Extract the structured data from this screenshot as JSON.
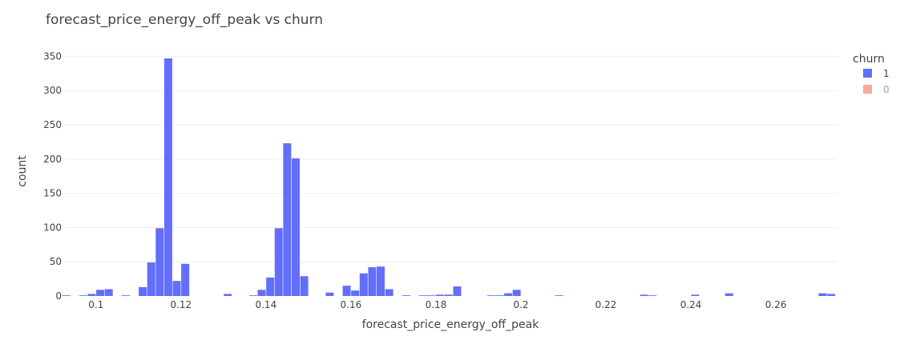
{
  "chart_data": {
    "type": "bar",
    "title": "forecast_price_energy_off_peak vs churn",
    "xlabel": "forecast_price_energy_off_peak",
    "ylabel": "count",
    "xlim": [
      0.0925,
      0.2745
    ],
    "ylim": [
      0,
      368
    ],
    "x_ticks": [
      0.1,
      0.12,
      0.14,
      0.16,
      0.18,
      0.2,
      0.22,
      0.24,
      0.26
    ],
    "x_tick_labels": [
      "0.1",
      "0.12",
      "0.14",
      "0.16",
      "0.18",
      "0.2",
      "0.22",
      "0.24",
      "0.26"
    ],
    "y_ticks": [
      0,
      50,
      100,
      150,
      200,
      250,
      300,
      350
    ],
    "y_tick_labels": [
      "0",
      "50",
      "100",
      "150",
      "200",
      "250",
      "300",
      "350"
    ],
    "bin_width": 0.002,
    "grid": true,
    "legend": {
      "title": "churn",
      "placement": "top-right",
      "entries": [
        {
          "label": "1",
          "color": "#636efa",
          "visible": true
        },
        {
          "label": "0",
          "color": "#ef553b",
          "visible": false
        }
      ]
    },
    "series": [
      {
        "name": "1",
        "color": "#636efa",
        "x": [
          0.093,
          0.097,
          0.099,
          0.101,
          0.103,
          0.105,
          0.107,
          0.111,
          0.113,
          0.115,
          0.117,
          0.119,
          0.121,
          0.123,
          0.125,
          0.129,
          0.131,
          0.133,
          0.137,
          0.139,
          0.141,
          0.143,
          0.145,
          0.147,
          0.149,
          0.151,
          0.153,
          0.155,
          0.157,
          0.159,
          0.161,
          0.163,
          0.165,
          0.167,
          0.169,
          0.171,
          0.173,
          0.175,
          0.177,
          0.179,
          0.181,
          0.183,
          0.185,
          0.187,
          0.189,
          0.191,
          0.193,
          0.195,
          0.197,
          0.199,
          0.201,
          0.203,
          0.205,
          0.209,
          0.213,
          0.217,
          0.221,
          0.225,
          0.229,
          0.231,
          0.235,
          0.239,
          0.241,
          0.245,
          0.249,
          0.255,
          0.261,
          0.265,
          0.269,
          0.271,
          0.273
        ],
        "values": [
          1,
          1,
          3,
          9,
          10,
          0,
          1,
          13,
          49,
          99,
          347,
          22,
          47,
          0,
          0,
          0,
          3,
          0,
          1,
          9,
          27,
          99,
          223,
          201,
          29,
          0,
          0,
          5,
          0,
          15,
          8,
          33,
          42,
          43,
          10,
          0,
          1,
          0,
          1,
          1,
          2,
          2,
          14,
          0,
          0,
          0,
          1,
          1,
          4,
          9,
          0,
          0,
          0,
          1,
          0,
          0,
          0,
          0,
          2,
          1,
          0,
          0,
          2,
          0,
          4,
          0,
          0,
          0,
          0,
          4,
          3
        ]
      }
    ]
  }
}
